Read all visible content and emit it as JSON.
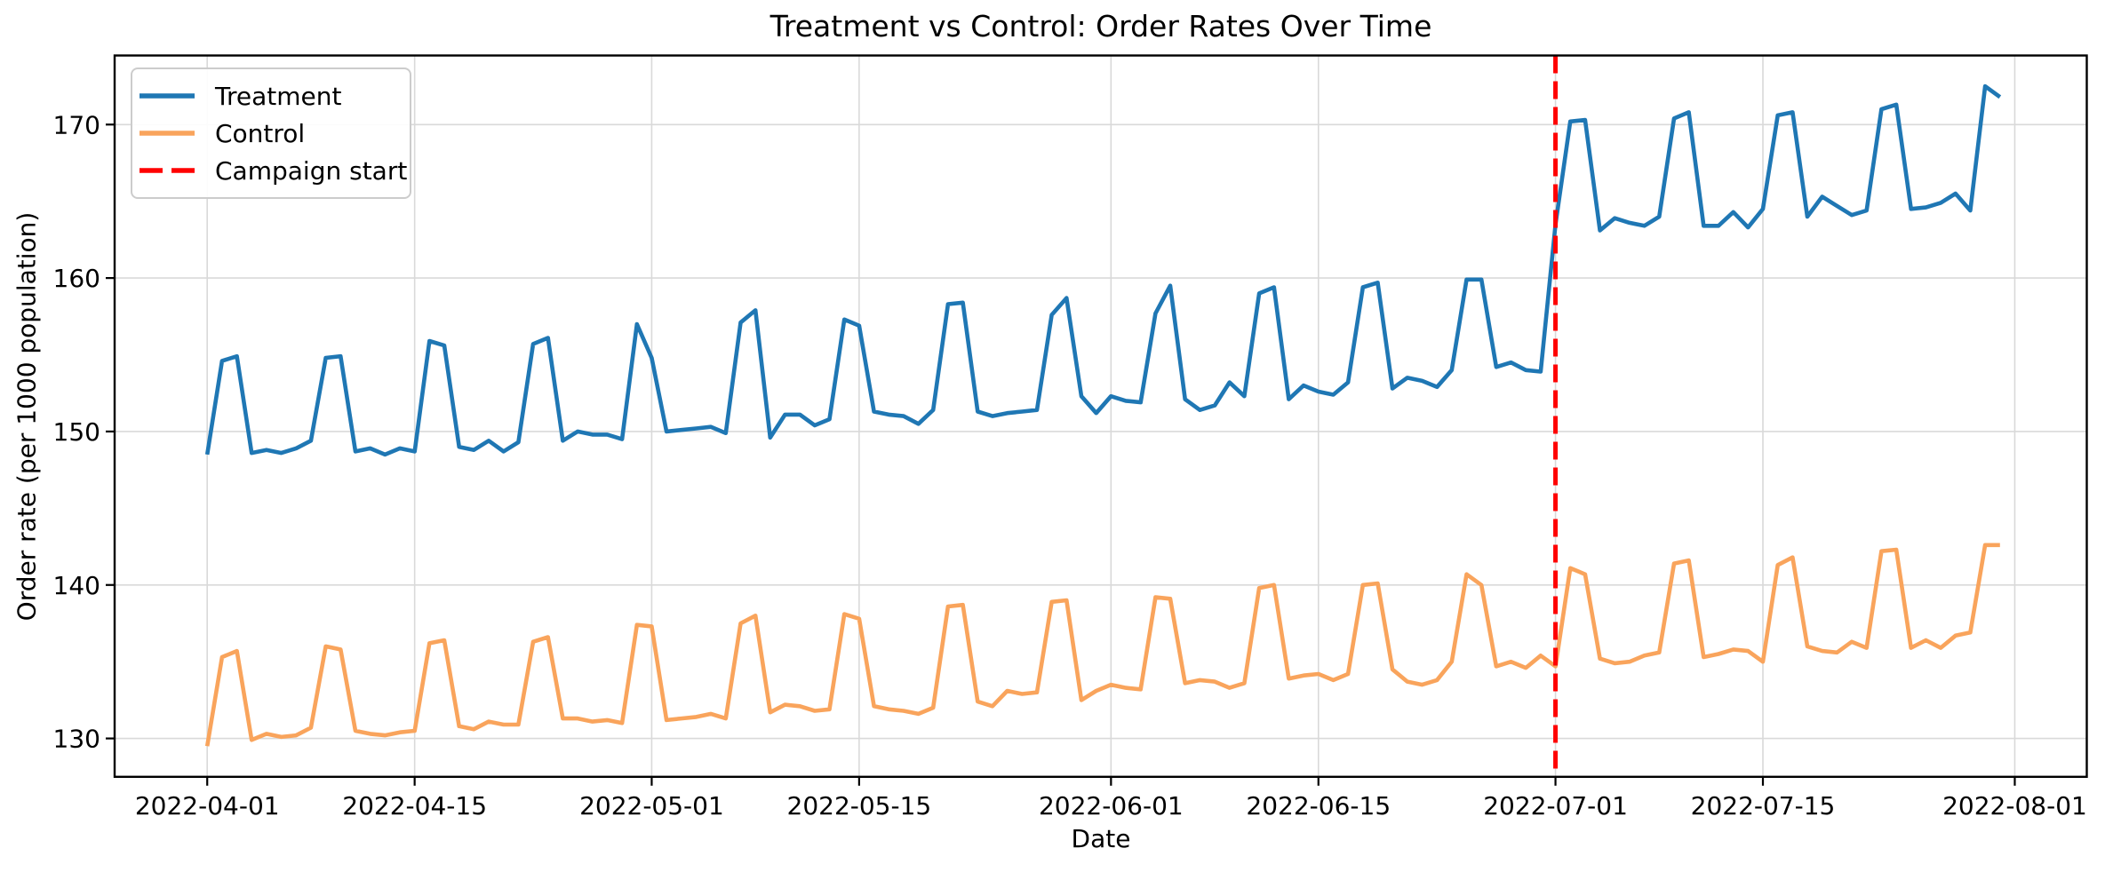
{
  "figure": {
    "title": "Treatment vs Control: Order Rates Over Time",
    "xlabel": "Date",
    "ylabel": "Order rate (per 1000 population)"
  },
  "legend": {
    "items": [
      {
        "label": "Treatment",
        "color": "#1f77b4",
        "style": "solid"
      },
      {
        "label": "Control",
        "color": "#f9a45c",
        "style": "solid"
      },
      {
        "label": "Campaign start",
        "color": "#ff0000",
        "style": "dashed"
      }
    ]
  },
  "chart_data": {
    "type": "line",
    "title": "Treatment vs Control: Order Rates Over Time",
    "xlabel": "Date",
    "ylabel": "Order rate (per 1000 population)",
    "grid": true,
    "legend_position": "upper left",
    "ylim": [
      127.5,
      174.5
    ],
    "xlim_days": [
      -6.25,
      126.86
    ],
    "y_ticks": [
      130,
      140,
      150,
      160,
      170
    ],
    "x_ticks": [
      {
        "label": "2022-04-01",
        "day": 0
      },
      {
        "label": "2022-04-15",
        "day": 14
      },
      {
        "label": "2022-05-01",
        "day": 30
      },
      {
        "label": "2022-05-15",
        "day": 44
      },
      {
        "label": "2022-06-01",
        "day": 61
      },
      {
        "label": "2022-06-15",
        "day": 75
      },
      {
        "label": "2022-07-01",
        "day": 91
      },
      {
        "label": "2022-07-15",
        "day": 105
      },
      {
        "label": "2022-08-01",
        "day": 122
      }
    ],
    "vline": {
      "label": "Campaign start",
      "date": "2022-07-01",
      "day": 91,
      "color": "#ff0000",
      "style": "dashed"
    },
    "dates": [
      "2022-04-01",
      "2022-04-02",
      "2022-04-03",
      "2022-04-04",
      "2022-04-05",
      "2022-04-06",
      "2022-04-07",
      "2022-04-08",
      "2022-04-09",
      "2022-04-10",
      "2022-04-11",
      "2022-04-12",
      "2022-04-13",
      "2022-04-14",
      "2022-04-15",
      "2022-04-16",
      "2022-04-17",
      "2022-04-18",
      "2022-04-19",
      "2022-04-20",
      "2022-04-21",
      "2022-04-22",
      "2022-04-23",
      "2022-04-24",
      "2022-04-25",
      "2022-04-26",
      "2022-04-27",
      "2022-04-28",
      "2022-04-29",
      "2022-04-30",
      "2022-05-01",
      "2022-05-02",
      "2022-05-03",
      "2022-05-04",
      "2022-05-05",
      "2022-05-06",
      "2022-05-07",
      "2022-05-08",
      "2022-05-09",
      "2022-05-10",
      "2022-05-11",
      "2022-05-12",
      "2022-05-13",
      "2022-05-14",
      "2022-05-15",
      "2022-05-16",
      "2022-05-17",
      "2022-05-18",
      "2022-05-19",
      "2022-05-20",
      "2022-05-21",
      "2022-05-22",
      "2022-05-23",
      "2022-05-24",
      "2022-05-25",
      "2022-05-26",
      "2022-05-27",
      "2022-05-28",
      "2022-05-29",
      "2022-05-30",
      "2022-05-31",
      "2022-06-01",
      "2022-06-02",
      "2022-06-03",
      "2022-06-04",
      "2022-06-05",
      "2022-06-06",
      "2022-06-07",
      "2022-06-08",
      "2022-06-09",
      "2022-06-10",
      "2022-06-11",
      "2022-06-12",
      "2022-06-13",
      "2022-06-14",
      "2022-06-15",
      "2022-06-16",
      "2022-06-17",
      "2022-06-18",
      "2022-06-19",
      "2022-06-20",
      "2022-06-21",
      "2022-06-22",
      "2022-06-23",
      "2022-06-24",
      "2022-06-25",
      "2022-06-26",
      "2022-06-27",
      "2022-06-28",
      "2022-06-29",
      "2022-06-30",
      "2022-07-01",
      "2022-07-02",
      "2022-07-03",
      "2022-07-04",
      "2022-07-05",
      "2022-07-06",
      "2022-07-07",
      "2022-07-08",
      "2022-07-09",
      "2022-07-10",
      "2022-07-11",
      "2022-07-12",
      "2022-07-13",
      "2022-07-14",
      "2022-07-15",
      "2022-07-16",
      "2022-07-17",
      "2022-07-18",
      "2022-07-19",
      "2022-07-20",
      "2022-07-21",
      "2022-07-22",
      "2022-07-23",
      "2022-07-24",
      "2022-07-25",
      "2022-07-26",
      "2022-07-27",
      "2022-07-28",
      "2022-07-29",
      "2022-07-30",
      "2022-07-31"
    ],
    "series": [
      {
        "name": "Treatment",
        "color": "#1f77b4",
        "values": [
          148.5,
          154.6,
          154.9,
          148.6,
          148.8,
          148.6,
          148.9,
          149.4,
          154.8,
          154.9,
          148.7,
          148.9,
          148.5,
          148.9,
          148.7,
          155.9,
          155.6,
          149.0,
          148.8,
          149.4,
          148.7,
          149.3,
          155.7,
          156.1,
          149.4,
          150.0,
          149.8,
          149.8,
          149.5,
          157.0,
          154.8,
          150.0,
          150.1,
          150.2,
          150.3,
          149.9,
          157.1,
          157.9,
          149.6,
          151.1,
          151.1,
          150.4,
          150.8,
          157.3,
          156.9,
          151.3,
          151.1,
          151.0,
          150.5,
          151.4,
          158.3,
          158.4,
          151.3,
          151.0,
          151.2,
          151.3,
          151.4,
          157.6,
          158.7,
          152.3,
          151.2,
          152.3,
          152.0,
          151.9,
          157.7,
          159.5,
          152.1,
          151.4,
          151.7,
          153.2,
          152.3,
          159.0,
          159.4,
          152.1,
          153.0,
          152.6,
          152.4,
          153.2,
          159.4,
          159.7,
          152.8,
          153.5,
          153.3,
          152.9,
          154.0,
          159.9,
          159.9,
          154.2,
          154.5,
          154.0,
          153.9,
          163.5,
          170.2,
          170.3,
          163.1,
          163.9,
          163.6,
          163.4,
          164.0,
          170.4,
          170.8,
          163.4,
          163.4,
          164.3,
          163.3,
          164.5,
          170.6,
          170.8,
          164.0,
          165.3,
          164.7,
          164.1,
          164.4,
          171.0,
          171.3,
          164.5,
          164.6,
          164.9,
          165.5,
          164.4,
          172.5,
          171.8
        ]
      },
      {
        "name": "Control",
        "color": "#f9a45c",
        "values": [
          129.5,
          135.3,
          135.7,
          129.9,
          130.3,
          130.1,
          130.2,
          130.7,
          136.0,
          135.8,
          130.5,
          130.3,
          130.2,
          130.4,
          130.5,
          136.2,
          136.4,
          130.8,
          130.6,
          131.1,
          130.9,
          130.9,
          136.3,
          136.6,
          131.3,
          131.3,
          131.1,
          131.2,
          131.0,
          137.4,
          137.3,
          131.2,
          131.3,
          131.4,
          131.6,
          131.3,
          137.5,
          138.0,
          131.7,
          132.2,
          132.1,
          131.8,
          131.9,
          138.1,
          137.8,
          132.1,
          131.9,
          131.8,
          131.6,
          132.0,
          138.6,
          138.7,
          132.4,
          132.1,
          133.1,
          132.9,
          133.0,
          138.9,
          139.0,
          132.5,
          133.1,
          133.5,
          133.3,
          133.2,
          139.2,
          139.1,
          133.6,
          133.8,
          133.7,
          133.3,
          133.6,
          139.8,
          140.0,
          133.9,
          134.1,
          134.2,
          133.8,
          134.2,
          140.0,
          140.1,
          134.5,
          133.7,
          133.5,
          133.8,
          135.0,
          140.7,
          140.0,
          134.7,
          135.0,
          134.6,
          135.4,
          134.7,
          141.1,
          140.7,
          135.2,
          134.9,
          135.0,
          135.4,
          135.6,
          141.4,
          141.6,
          135.3,
          135.5,
          135.8,
          135.7,
          135.0,
          141.3,
          141.8,
          136.0,
          135.7,
          135.6,
          136.3,
          135.9,
          142.2,
          142.3,
          135.9,
          136.4,
          135.9,
          136.7,
          136.9,
          142.6,
          142.6
        ]
      }
    ]
  },
  "style": {
    "grid_color": "#d9d9d9",
    "spine_color": "#000000",
    "tick_label_color": "#000000",
    "background": "#ffffff"
  }
}
